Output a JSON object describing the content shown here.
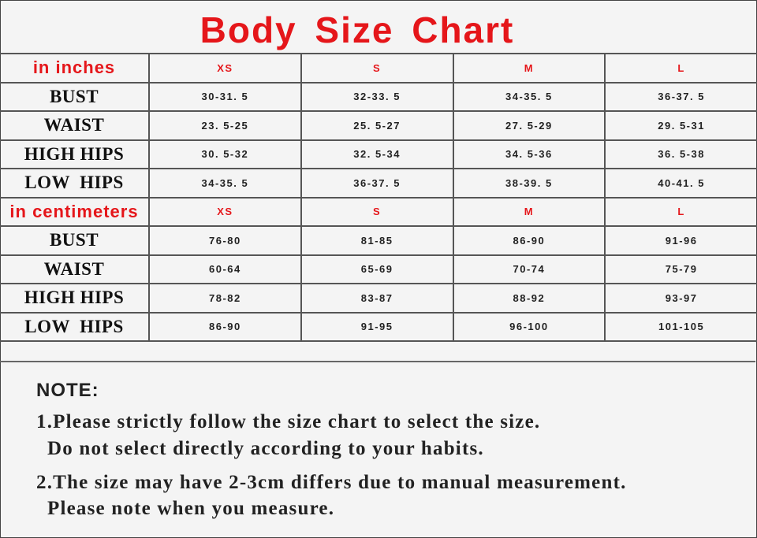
{
  "title": "Body Size Chart",
  "sizes": [
    "XS",
    "S",
    "M",
    "L"
  ],
  "inches": {
    "label": "in inches",
    "rows": [
      {
        "name": "BUST",
        "values": [
          "30-31. 5",
          "32-33. 5",
          "34-35. 5",
          "36-37. 5"
        ]
      },
      {
        "name": "WAIST",
        "values": [
          "23. 5-25",
          "25. 5-27",
          "27. 5-29",
          "29. 5-31"
        ]
      },
      {
        "name": "HIGH HIPS",
        "values": [
          "30. 5-32",
          "32. 5-34",
          "34. 5-36",
          "36. 5-38"
        ]
      },
      {
        "name": "LOW  HIPS",
        "values": [
          "34-35. 5",
          "36-37. 5",
          "38-39. 5",
          "40-41. 5"
        ]
      }
    ]
  },
  "centimeters": {
    "label": "in centimeters",
    "rows": [
      {
        "name": "BUST",
        "values": [
          "76-80",
          "81-85",
          "86-90",
          "91-96"
        ]
      },
      {
        "name": "WAIST",
        "values": [
          "60-64",
          "65-69",
          "70-74",
          "75-79"
        ]
      },
      {
        "name": "HIGH HIPS",
        "values": [
          "78-82",
          "83-87",
          "88-92",
          "93-97"
        ]
      },
      {
        "name": "LOW  HIPS",
        "values": [
          "86-90",
          "91-95",
          "96-100",
          "101-105"
        ]
      }
    ]
  },
  "notes": {
    "title": "NOTE:",
    "lines": [
      "1.Please strictly follow the size chart to select the size.",
      "Do not select directly according to your habits.",
      "2.The size may have 2-3cm differs due to manual measurement.",
      "Please note when you measure."
    ]
  },
  "colors": {
    "accent": "#e5161a",
    "text": "#222222",
    "background": "#f4f4f4"
  }
}
